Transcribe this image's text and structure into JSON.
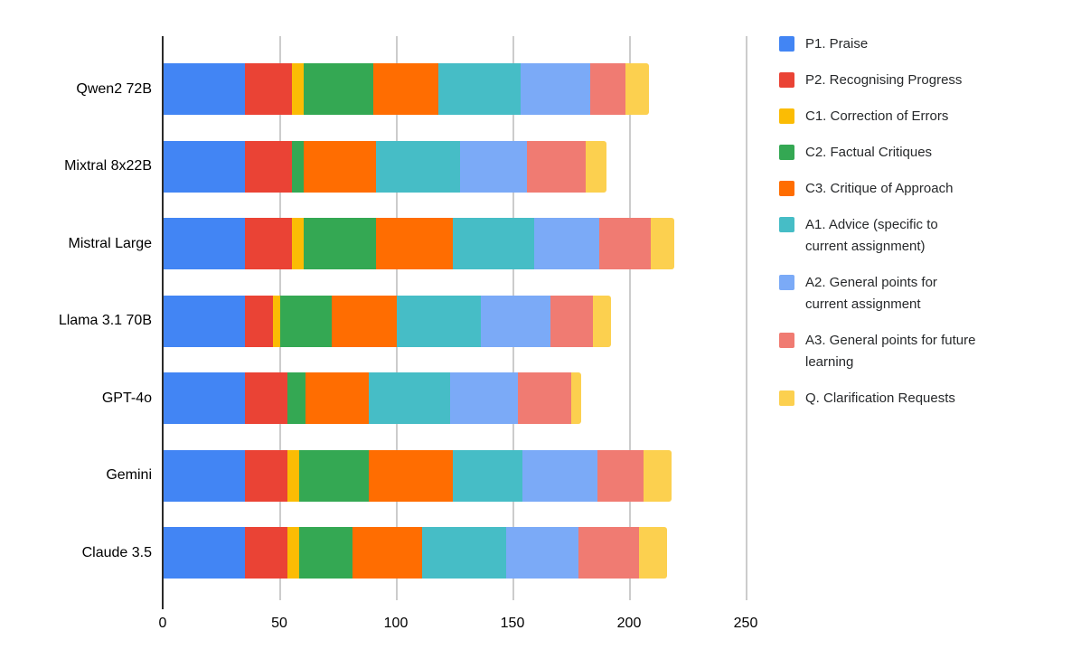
{
  "chart_data": {
    "type": "bar",
    "orientation": "horizontal",
    "stacked": true,
    "title": "",
    "xlabel": "",
    "ylabel": "",
    "grid": true,
    "legend_position": "right",
    "x_axis": {
      "min": 0,
      "max": 250,
      "ticks": [
        0,
        50,
        100,
        150,
        200,
        250
      ]
    },
    "categories": [
      "Qwen2 72B",
      "Mixtral 8x22B",
      "Mistral Large",
      "Llama 3.1 70B",
      "GPT-4o",
      "Gemini",
      "Claude 3.5"
    ],
    "series": [
      {
        "name": "P1. Praise",
        "color": "#4285F4",
        "legend_lines": [
          "P1. Praise"
        ],
        "values": [
          35,
          35,
          35,
          35,
          35,
          35,
          35
        ]
      },
      {
        "name": "P2. Recognising Progress",
        "color": "#EA4335",
        "legend_lines": [
          "P2. Recognising Progress"
        ],
        "values": [
          20,
          20,
          20,
          12,
          18,
          18,
          18
        ]
      },
      {
        "name": "C1. Correction of Errors",
        "color": "#FBBC04",
        "legend_lines": [
          "C1. Correction of Errors"
        ],
        "values": [
          5,
          0,
          5,
          3,
          0,
          5,
          5
        ]
      },
      {
        "name": "C2. Factual Critiques",
        "color": "#34A853",
        "legend_lines": [
          "C2. Factual Critiques"
        ],
        "values": [
          30,
          5,
          31,
          22,
          8,
          30,
          23
        ]
      },
      {
        "name": "C3. Critique of Approach",
        "color": "#FF6D01",
        "legend_lines": [
          "C3. Critique of Approach"
        ],
        "values": [
          28,
          31,
          33,
          28,
          27,
          36,
          30
        ]
      },
      {
        "name": "A1. Advice (specific to current assignment)",
        "color": "#46BDC6",
        "legend_lines": [
          "A1. Advice (specific to",
          "current assignment)"
        ],
        "values": [
          35,
          36,
          35,
          36,
          35,
          30,
          36
        ]
      },
      {
        "name": "A2. General points for current assignment",
        "color": "#7BAAF7",
        "legend_lines": [
          "A2. General points for",
          "current assignment"
        ],
        "values": [
          30,
          29,
          28,
          30,
          29,
          32,
          31
        ]
      },
      {
        "name": "A3. General points for future learning",
        "color": "#F07B72",
        "legend_lines": [
          "A3. General points for future",
          "learning"
        ],
        "values": [
          15,
          25,
          22,
          18,
          23,
          20,
          26
        ]
      },
      {
        "name": "Q. Clarification Requests",
        "color": "#FCD04F",
        "legend_lines": [
          "Q. Clarification Requests"
        ],
        "values": [
          10,
          9,
          10,
          8,
          4,
          12,
          12
        ]
      }
    ],
    "totals": [
      208,
      190,
      219,
      192,
      179,
      218,
      216
    ]
  },
  "colors": {
    "background": "#ffffff",
    "gridline": "#cccccc",
    "axis_line": "#2b2b2b",
    "label_text": "#000000",
    "legend_text": "#27292b"
  }
}
